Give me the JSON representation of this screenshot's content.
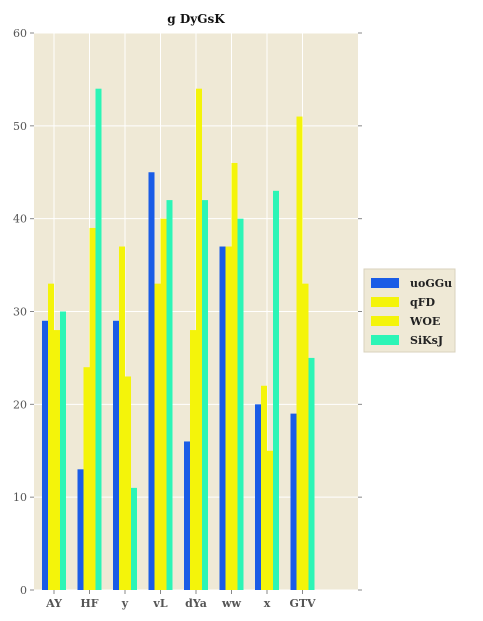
{
  "chart_data": {
    "type": "bar",
    "title": "g DyGsK",
    "xlabel": "",
    "ylabel": "",
    "categories": [
      "AY",
      "HF",
      "y",
      "vL",
      "dYa",
      "ww",
      "x",
      "GTV"
    ],
    "ylim": [
      0,
      60
    ],
    "yticks": [
      0,
      10,
      20,
      30,
      40,
      50,
      60
    ],
    "grid": true,
    "legend_position": "right",
    "background": "#efe9d6",
    "series": [
      {
        "name": "uoGGu",
        "color": "#1a5ce6",
        "values": [
          29,
          13,
          29,
          45,
          16,
          37,
          20,
          19
        ]
      },
      {
        "name": "qFD",
        "color": "#f4f40a",
        "values": [
          33,
          24,
          37,
          33,
          28,
          37,
          22,
          51
        ]
      },
      {
        "name": "WOE",
        "color": "#f4f40a",
        "values": [
          28,
          39,
          23,
          40,
          54,
          46,
          15,
          33
        ]
      },
      {
        "name": "SiKsJ",
        "color": "#2cf5b6",
        "values": [
          30,
          54,
          11,
          42,
          42,
          40,
          43,
          25
        ]
      }
    ]
  }
}
